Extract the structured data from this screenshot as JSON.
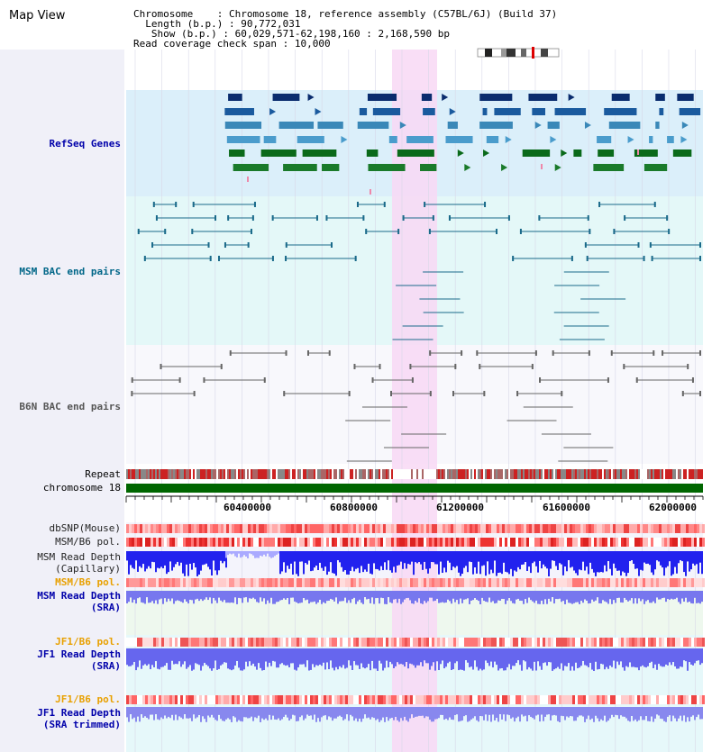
{
  "header": {
    "title": "Map View",
    "chromosome_key": "Chromosome",
    "chromosome_value": "Chromosome 18, reference assembly (C57BL/6J) (Build 37)",
    "length_key": "Length (b.p.)",
    "length_value": "90,772,031",
    "show_key": "Show (b.p.)",
    "show_value": "60,029,571-62,198,160 : 2,168,590 bp",
    "coverage_key": "Read coverage check span",
    "coverage_value": "10,000"
  },
  "tracks": {
    "refseq": "RefSeq Genes",
    "msm_bac": "MSM BAC end pairs",
    "b6n_bac": "B6N BAC end pairs",
    "repeat": "Repeat",
    "chromosome": "chromosome 18",
    "dbsnp": "dbSNP(Mouse)",
    "msm_b6_pol_1": "MSM/B6 pol.",
    "msm_depth_cap_1": "MSM Read Depth",
    "msm_depth_cap_2": "(Capillary)",
    "msm_b6_pol_2": "MSM/B6 pol.",
    "msm_depth_sra_1": "MSM Read Depth",
    "msm_depth_sra_2": "(SRA)",
    "jf1_b6_pol_1": "JF1/B6 pol.",
    "jf1_depth_sra_1": "JF1 Read Depth",
    "jf1_depth_sra_2": "(SRA)",
    "jf1_b6_pol_2": "JF1/B6 pol.",
    "jf1_depth_trim_1": "JF1 Read Depth",
    "jf1_depth_trim_2": "(SRA trimmed)"
  },
  "axis": {
    "ticks": [
      "60400000",
      "60800000",
      "61200000",
      "61600000",
      "62000000"
    ]
  },
  "colors": {
    "refseq_bg": "#dbeffa",
    "msm_bac_bg": "#e4f8f8",
    "b6n_bac_bg": "#f8f8fc",
    "highlight": "#f8d8f4",
    "chromosome_bar": "#006600",
    "label_refseq": "#0000aa",
    "label_msm": "#006688",
    "label_b6n": "#555555",
    "label_orange": "#e8a000",
    "label_blue": "#0000aa"
  }
}
